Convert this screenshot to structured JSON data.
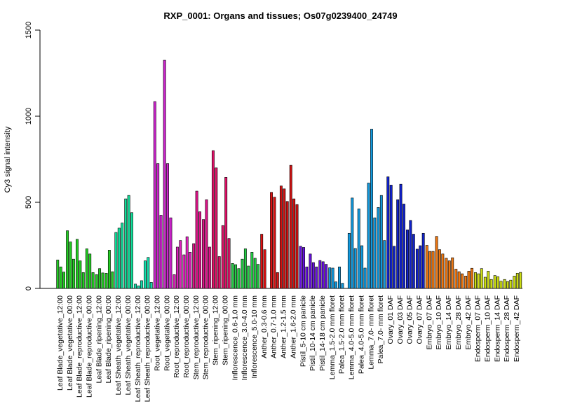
{
  "chart_data": {
    "type": "bar",
    "title": "RXP_0001: Organs and tissues; Os07g0239400_24749",
    "xlabel": "",
    "ylabel": "Cy3 signal intensity",
    "ylim": [
      0,
      1500
    ],
    "yticks": [
      0,
      500,
      1000,
      1500
    ],
    "grid": false,
    "legend": "none",
    "groups": [
      {
        "label": "Leaf Blade_vegetative_12:00",
        "color": "#22cc22",
        "values": [
          165,
          125,
          95
        ]
      },
      {
        "label": "Leaf Blade_vegetative_00:00",
        "color": "#22cc22",
        "values": [
          335,
          270,
          170
        ]
      },
      {
        "label": "Leaf Blade_reproductive_12:00",
        "color": "#22cc22",
        "values": [
          285,
          160,
          92
        ]
      },
      {
        "label": "Leaf Blade_reproductive_00:00",
        "color": "#22cc22",
        "values": [
          230,
          200,
          92
        ]
      },
      {
        "label": "Leaf Blade_ripening_12:00",
        "color": "#22cc22",
        "values": [
          80,
          115,
          90
        ]
      },
      {
        "label": "Leaf Blade_ripening_00:00",
        "color": "#22cc22",
        "values": [
          88,
          222,
          97
        ]
      },
      {
        "label": "Leaf Sheath_vegetative_12:00",
        "color": "#11dd99",
        "values": [
          325,
          350,
          380
        ]
      },
      {
        "label": "Leaf Sheath_vegetative_00:00",
        "color": "#11dd99",
        "values": [
          520,
          540,
          440
        ]
      },
      {
        "label": "Leaf Sheath_reproductive_12:00",
        "color": "#11ddaa",
        "values": [
          25,
          15,
          45
        ]
      },
      {
        "label": "Leaf Sheath_reproductive_00:00",
        "color": "#11ddaa",
        "values": [
          160,
          180,
          35
        ]
      },
      {
        "label": "Root_vegetative_12:00",
        "color": "#cc22cc",
        "values": [
          1085,
          725,
          425
        ]
      },
      {
        "label": "Root_vegetative_00:00",
        "color": "#cc22cc",
        "values": [
          1325,
          725,
          410
        ]
      },
      {
        "label": "Root_reproductive_12:00",
        "color": "#dd22bb",
        "values": [
          80,
          240,
          278
        ]
      },
      {
        "label": "Root_reproductive_00:00",
        "color": "#dd22bb",
        "values": [
          195,
          300,
          210
        ]
      },
      {
        "label": "Stem_reproductive_12:00",
        "color": "#dd1188",
        "values": [
          260,
          565,
          445
        ]
      },
      {
        "label": "Stem_reproductive_00:00",
        "color": "#dd1188",
        "values": [
          400,
          515,
          240
        ]
      },
      {
        "label": "Stem_ripening_12:00",
        "color": "#dd1166",
        "values": [
          800,
          700,
          185
        ]
      },
      {
        "label": "Stem_ripening_00:00",
        "color": "#dd1166",
        "values": [
          365,
          645,
          290
        ]
      },
      {
        "label": "Inflorescence_0.6-1.0 mm",
        "color": "#22cc44",
        "values": [
          145,
          138,
          115
        ]
      },
      {
        "label": "Inflorescence_3.0-4.0 mm",
        "color": "#22cc44",
        "values": [
          170,
          230,
          130
        ]
      },
      {
        "label": "Inflorescence_5.0-10 mm",
        "color": "#22cc44",
        "values": [
          210,
          175,
          140
        ]
      },
      {
        "label": "Anther_0.3-0.6 mm",
        "color": "#dd1111",
        "values": [
          315,
          225
        ]
      },
      {
        "label": "Anther_0.7-1.0 mm",
        "color": "#dd1111",
        "values": [
          558,
          530,
          92
        ]
      },
      {
        "label": "Anther_1.2-1.5 mm",
        "color": "#cc1111",
        "values": [
          595,
          578,
          505
        ]
      },
      {
        "label": "Anther_1.6-2.0 mm",
        "color": "#cc1111",
        "values": [
          715,
          520,
          487
        ]
      },
      {
        "label": "Pistil_5-10 cm panicle",
        "color": "#6611dd",
        "values": [
          245,
          238,
          125
        ]
      },
      {
        "label": "Pistil_10-14 cm panicle",
        "color": "#6611dd",
        "values": [
          200,
          150,
          125
        ]
      },
      {
        "label": "Pistil_14-18 cm panicle",
        "color": "#6611dd",
        "values": [
          162,
          155,
          140
        ]
      },
      {
        "label": "Lemma_1.5-2.0 mm floret",
        "color": "#1199dd",
        "values": [
          120,
          118,
          38
        ]
      },
      {
        "label": "Palea_1.5-2.0 mm floret",
        "color": "#1199dd",
        "values": [
          125,
          30
        ]
      },
      {
        "label": "Lemma_4.0-5.0 mm floret",
        "color": "#1199dd",
        "values": [
          320,
          525,
          232
        ]
      },
      {
        "label": "Palea_4.0-5.0 mm floret",
        "color": "#1199dd",
        "values": [
          462,
          248,
          118
        ]
      },
      {
        "label": "Lemma_7.0- mm floret",
        "color": "#1199dd",
        "values": [
          612,
          925,
          410
        ]
      },
      {
        "label": "Palea_7.0- mm floret",
        "color": "#1199dd",
        "values": [
          470,
          540,
          278
        ]
      },
      {
        "label": "Ovary_01 DAF",
        "color": "#1122cc",
        "values": [
          648,
          600,
          245
        ]
      },
      {
        "label": "Ovary_03 DAF",
        "color": "#1122cc",
        "values": [
          515,
          605,
          490
        ]
      },
      {
        "label": "Ovary_05 DAF",
        "color": "#1122cc",
        "values": [
          340,
          395,
          315
        ]
      },
      {
        "label": "Ovary_07 DAF",
        "color": "#1122cc",
        "values": [
          228,
          248,
          320
        ]
      },
      {
        "label": "Embryo_07 DAF",
        "color": "#ee7711",
        "values": [
          250,
          215,
          215
        ]
      },
      {
        "label": "Embryo_10 DAF",
        "color": "#ee7711",
        "values": [
          302,
          225,
          200
        ]
      },
      {
        "label": "Embryo_14 DAF",
        "color": "#ee7711",
        "values": [
          175,
          160,
          178
        ]
      },
      {
        "label": "Embryo_28 DAF",
        "color": "#ee7711",
        "values": [
          112,
          97,
          85
        ]
      },
      {
        "label": "Embryo_42 DAF",
        "color": "#ee7711",
        "values": [
          72,
          100,
          117
        ]
      },
      {
        "label": "Endosperm_07 DAF",
        "color": "#ccdd11",
        "values": [
          92,
          85,
          115
        ]
      },
      {
        "label": "Endosperm_10 DAF",
        "color": "#ccdd11",
        "values": [
          65,
          100,
          52
        ]
      },
      {
        "label": "Endosperm_14 DAF",
        "color": "#ccdd11",
        "values": [
          75,
          68,
          42
        ]
      },
      {
        "label": "Endosperm_28 DAF",
        "color": "#ccdd11",
        "values": [
          52,
          40,
          48
        ]
      },
      {
        "label": "Endosperm_42 DAF",
        "color": "#ccdd11",
        "values": [
          72,
          88,
          93
        ]
      }
    ]
  }
}
